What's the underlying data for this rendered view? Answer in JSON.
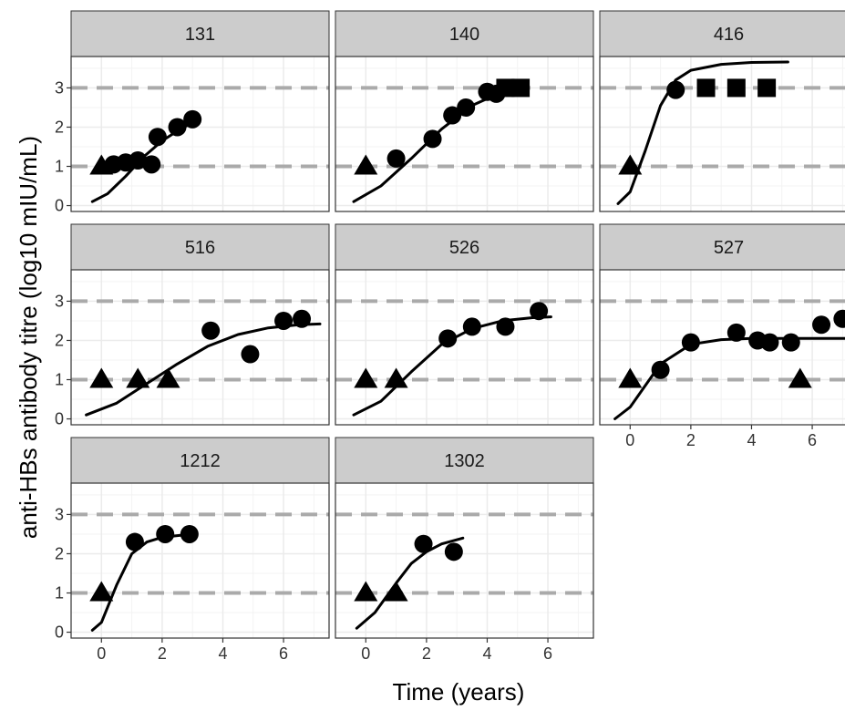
{
  "chart_data": {
    "type": "scatter",
    "facet_layout": "3-column facet grid with shared axes",
    "xlabel": "Time (years)",
    "ylabel": "anti-HBs antibody titre (log10 mIU/mL)",
    "xlim": [
      -1,
      7.5
    ],
    "ylim": [
      -0.15,
      3.8
    ],
    "x_ticks": [
      "0",
      "2",
      "4",
      "6"
    ],
    "y_ticks": [
      "0",
      "1",
      "2",
      "3"
    ],
    "reference_lines": [
      1,
      3
    ],
    "grid": true,
    "marker_types": [
      "triangle",
      "circle",
      "square"
    ],
    "colors": {
      "strip_fill": "#cccccc",
      "panel_border": "#333333",
      "grid": "#ebebeb",
      "reference_line": "#aaaaaa",
      "marks": "#000000"
    },
    "panels": [
      {
        "id": "131",
        "points": [
          {
            "x": 0,
            "y": 1.0,
            "shape": "triangle"
          },
          {
            "x": 0.4,
            "y": 1.05,
            "shape": "circle"
          },
          {
            "x": 0.8,
            "y": 1.1,
            "shape": "circle"
          },
          {
            "x": 1.2,
            "y": 1.15,
            "shape": "circle"
          },
          {
            "x": 1.65,
            "y": 1.05,
            "shape": "circle"
          },
          {
            "x": 1.85,
            "y": 1.75,
            "shape": "circle"
          },
          {
            "x": 2.5,
            "y": 2.0,
            "shape": "circle"
          },
          {
            "x": 3.0,
            "y": 2.2,
            "shape": "circle"
          }
        ],
        "curve": [
          [
            -0.3,
            0.1
          ],
          [
            0.2,
            0.3
          ],
          [
            0.8,
            0.75
          ],
          [
            1.4,
            1.25
          ],
          [
            2.0,
            1.65
          ],
          [
            2.5,
            1.9
          ],
          [
            3.0,
            2.12
          ],
          [
            3.2,
            2.18
          ]
        ]
      },
      {
        "id": "140",
        "points": [
          {
            "x": 0,
            "y": 1.0,
            "shape": "triangle"
          },
          {
            "x": 1.0,
            "y": 1.2,
            "shape": "circle"
          },
          {
            "x": 2.2,
            "y": 1.7,
            "shape": "circle"
          },
          {
            "x": 2.85,
            "y": 2.3,
            "shape": "circle"
          },
          {
            "x": 3.3,
            "y": 2.5,
            "shape": "circle"
          },
          {
            "x": 4.0,
            "y": 2.9,
            "shape": "circle"
          },
          {
            "x": 4.3,
            "y": 2.85,
            "shape": "circle"
          },
          {
            "x": 4.6,
            "y": 3.0,
            "shape": "square"
          },
          {
            "x": 5.1,
            "y": 3.0,
            "shape": "square"
          }
        ],
        "curve": [
          [
            -0.4,
            0.1
          ],
          [
            0.5,
            0.5
          ],
          [
            1.5,
            1.2
          ],
          [
            2.5,
            1.95
          ],
          [
            3.5,
            2.55
          ],
          [
            4.5,
            2.9
          ],
          [
            5.3,
            3.05
          ]
        ]
      },
      {
        "id": "416",
        "points": [
          {
            "x": 0,
            "y": 1.0,
            "shape": "triangle"
          },
          {
            "x": 1.5,
            "y": 2.95,
            "shape": "circle"
          },
          {
            "x": 2.5,
            "y": 3.0,
            "shape": "square"
          },
          {
            "x": 3.5,
            "y": 3.0,
            "shape": "square"
          },
          {
            "x": 4.5,
            "y": 3.0,
            "shape": "square"
          }
        ],
        "curve": [
          [
            -0.4,
            0.05
          ],
          [
            0.0,
            0.35
          ],
          [
            0.5,
            1.4
          ],
          [
            1.0,
            2.55
          ],
          [
            1.5,
            3.2
          ],
          [
            2.0,
            3.45
          ],
          [
            3.0,
            3.6
          ],
          [
            4.0,
            3.65
          ],
          [
            5.2,
            3.66
          ]
        ]
      },
      {
        "id": "516",
        "points": [
          {
            "x": 0,
            "y": 1.0,
            "shape": "triangle"
          },
          {
            "x": 1.2,
            "y": 1.0,
            "shape": "triangle"
          },
          {
            "x": 2.2,
            "y": 1.0,
            "shape": "triangle"
          },
          {
            "x": 3.6,
            "y": 2.25,
            "shape": "circle"
          },
          {
            "x": 4.9,
            "y": 1.65,
            "shape": "circle"
          },
          {
            "x": 6.0,
            "y": 2.5,
            "shape": "circle"
          },
          {
            "x": 6.6,
            "y": 2.55,
            "shape": "circle"
          }
        ],
        "curve": [
          [
            -0.5,
            0.1
          ],
          [
            0.5,
            0.4
          ],
          [
            1.5,
            0.9
          ],
          [
            2.5,
            1.4
          ],
          [
            3.5,
            1.85
          ],
          [
            4.5,
            2.15
          ],
          [
            5.5,
            2.32
          ],
          [
            6.5,
            2.4
          ],
          [
            7.2,
            2.42
          ]
        ]
      },
      {
        "id": "526",
        "points": [
          {
            "x": 0,
            "y": 1.0,
            "shape": "triangle"
          },
          {
            "x": 1.0,
            "y": 1.0,
            "shape": "triangle"
          },
          {
            "x": 2.7,
            "y": 2.05,
            "shape": "circle"
          },
          {
            "x": 3.5,
            "y": 2.35,
            "shape": "circle"
          },
          {
            "x": 4.6,
            "y": 2.35,
            "shape": "circle"
          },
          {
            "x": 5.7,
            "y": 2.75,
            "shape": "circle"
          }
        ],
        "curve": [
          [
            -0.4,
            0.1
          ],
          [
            0.5,
            0.45
          ],
          [
            1.5,
            1.2
          ],
          [
            2.5,
            1.9
          ],
          [
            3.5,
            2.3
          ],
          [
            4.5,
            2.5
          ],
          [
            5.5,
            2.58
          ],
          [
            6.1,
            2.6
          ]
        ]
      },
      {
        "id": "527",
        "points": [
          {
            "x": 0,
            "y": 1.0,
            "shape": "triangle"
          },
          {
            "x": 1.0,
            "y": 1.25,
            "shape": "circle"
          },
          {
            "x": 2.0,
            "y": 1.95,
            "shape": "circle"
          },
          {
            "x": 3.5,
            "y": 2.2,
            "shape": "circle"
          },
          {
            "x": 4.2,
            "y": 2.0,
            "shape": "circle"
          },
          {
            "x": 4.6,
            "y": 1.95,
            "shape": "circle"
          },
          {
            "x": 5.3,
            "y": 1.95,
            "shape": "circle"
          },
          {
            "x": 5.6,
            "y": 1.0,
            "shape": "triangle"
          },
          {
            "x": 6.3,
            "y": 2.4,
            "shape": "circle"
          },
          {
            "x": 7.0,
            "y": 2.55,
            "shape": "circle"
          }
        ],
        "curve": [
          [
            -0.5,
            0.0
          ],
          [
            0.0,
            0.3
          ],
          [
            1.0,
            1.4
          ],
          [
            2.0,
            1.9
          ],
          [
            3.0,
            2.02
          ],
          [
            4.0,
            2.05
          ],
          [
            5.0,
            2.05
          ],
          [
            6.0,
            2.05
          ],
          [
            7.3,
            2.05
          ]
        ]
      },
      {
        "id": "1212",
        "points": [
          {
            "x": 0,
            "y": 1.0,
            "shape": "triangle"
          },
          {
            "x": 1.1,
            "y": 2.3,
            "shape": "circle"
          },
          {
            "x": 2.1,
            "y": 2.5,
            "shape": "circle"
          },
          {
            "x": 2.9,
            "y": 2.5,
            "shape": "circle"
          }
        ],
        "curve": [
          [
            -0.3,
            0.05
          ],
          [
            0.0,
            0.25
          ],
          [
            0.5,
            1.2
          ],
          [
            1.0,
            2.0
          ],
          [
            1.5,
            2.3
          ],
          [
            2.0,
            2.42
          ],
          [
            3.0,
            2.5
          ]
        ]
      },
      {
        "id": "1302",
        "points": [
          {
            "x": 0,
            "y": 1.0,
            "shape": "triangle"
          },
          {
            "x": 1.0,
            "y": 1.0,
            "shape": "triangle"
          },
          {
            "x": 1.9,
            "y": 2.25,
            "shape": "circle"
          },
          {
            "x": 2.9,
            "y": 2.05,
            "shape": "circle"
          }
        ],
        "curve": [
          [
            -0.3,
            0.1
          ],
          [
            0.3,
            0.5
          ],
          [
            1.0,
            1.25
          ],
          [
            1.5,
            1.75
          ],
          [
            2.0,
            2.05
          ],
          [
            2.5,
            2.25
          ],
          [
            3.2,
            2.4
          ]
        ]
      }
    ]
  }
}
